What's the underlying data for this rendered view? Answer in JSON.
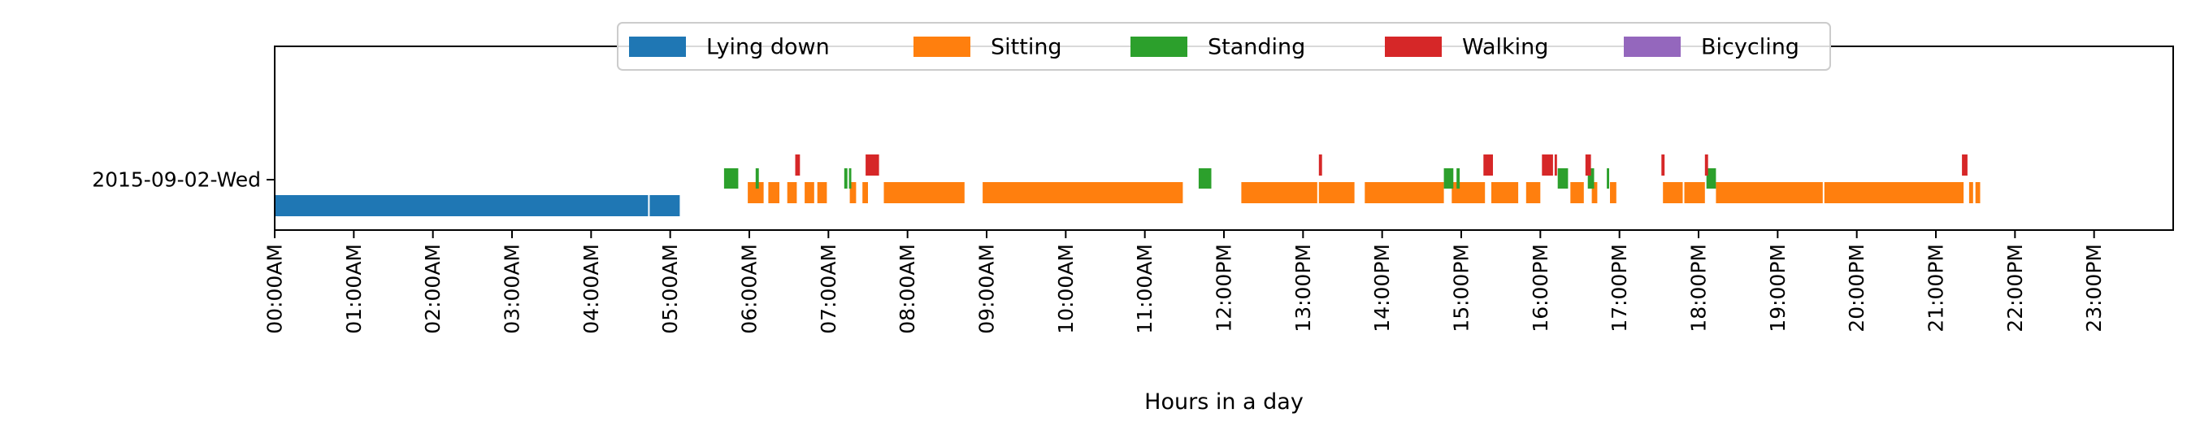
{
  "chart_data": {
    "type": "bar",
    "subtype": "horizontal activity timeline",
    "xlabel": "Hours in a day",
    "ylabel": "",
    "xlim": [
      0,
      24
    ],
    "x_unit": "hours",
    "grid": false,
    "legend_position": "top-center",
    "y_categories": [
      "2015-09-02-Wed"
    ],
    "x_ticks": [
      "00:00AM",
      "01:00AM",
      "02:00AM",
      "03:00AM",
      "04:00AM",
      "05:00AM",
      "06:00AM",
      "07:00AM",
      "08:00AM",
      "09:00AM",
      "10:00AM",
      "11:00AM",
      "12:00PM",
      "13:00PM",
      "14:00PM",
      "15:00PM",
      "16:00PM",
      "17:00PM",
      "18:00PM",
      "19:00PM",
      "20:00PM",
      "21:00PM",
      "22:00PM",
      "23:00PM"
    ],
    "series": [
      {
        "name": "Lying down",
        "color": "#1f77b4",
        "intervals": [
          [
            0.0,
            4.72
          ],
          [
            4.74,
            5.12
          ]
        ]
      },
      {
        "name": "Sitting",
        "color": "#ff7f0e",
        "intervals": [
          [
            5.98,
            6.18
          ],
          [
            6.24,
            6.38
          ],
          [
            6.48,
            6.6
          ],
          [
            6.7,
            6.82
          ],
          [
            6.86,
            6.98
          ],
          [
            7.27,
            7.35
          ],
          [
            7.43,
            7.5
          ],
          [
            7.7,
            8.72
          ],
          [
            8.95,
            11.48
          ],
          [
            12.22,
            13.18
          ],
          [
            13.2,
            13.65
          ],
          [
            13.78,
            14.78
          ],
          [
            14.88,
            15.3
          ],
          [
            15.38,
            15.72
          ],
          [
            15.82,
            16.0
          ],
          [
            16.38,
            16.55
          ],
          [
            16.65,
            16.72
          ],
          [
            16.88,
            16.96
          ],
          [
            17.55,
            17.8
          ],
          [
            17.82,
            18.08
          ],
          [
            18.22,
            19.57
          ],
          [
            19.59,
            21.35
          ],
          [
            21.42,
            21.47
          ],
          [
            21.5,
            21.56
          ]
        ]
      },
      {
        "name": "Standing",
        "color": "#2ca02c",
        "intervals": [
          [
            5.68,
            5.86
          ],
          [
            6.08,
            6.12
          ],
          [
            7.2,
            7.24
          ],
          [
            7.26,
            7.29
          ],
          [
            11.68,
            11.84
          ],
          [
            14.78,
            14.9
          ],
          [
            14.94,
            14.98
          ],
          [
            16.22,
            16.35
          ],
          [
            16.6,
            16.68
          ],
          [
            16.84,
            16.87
          ],
          [
            18.1,
            18.22
          ]
        ]
      },
      {
        "name": "Walking",
        "color": "#d62728",
        "intervals": [
          [
            6.58,
            6.64
          ],
          [
            7.47,
            7.64
          ],
          [
            13.2,
            13.24
          ],
          [
            15.28,
            15.4
          ],
          [
            16.02,
            16.16
          ],
          [
            16.18,
            16.21
          ],
          [
            16.57,
            16.64
          ],
          [
            17.53,
            17.57
          ],
          [
            18.08,
            18.12
          ],
          [
            21.33,
            21.4
          ]
        ]
      },
      {
        "name": "Bicycling",
        "color": "#9467bd",
        "intervals": []
      }
    ]
  }
}
